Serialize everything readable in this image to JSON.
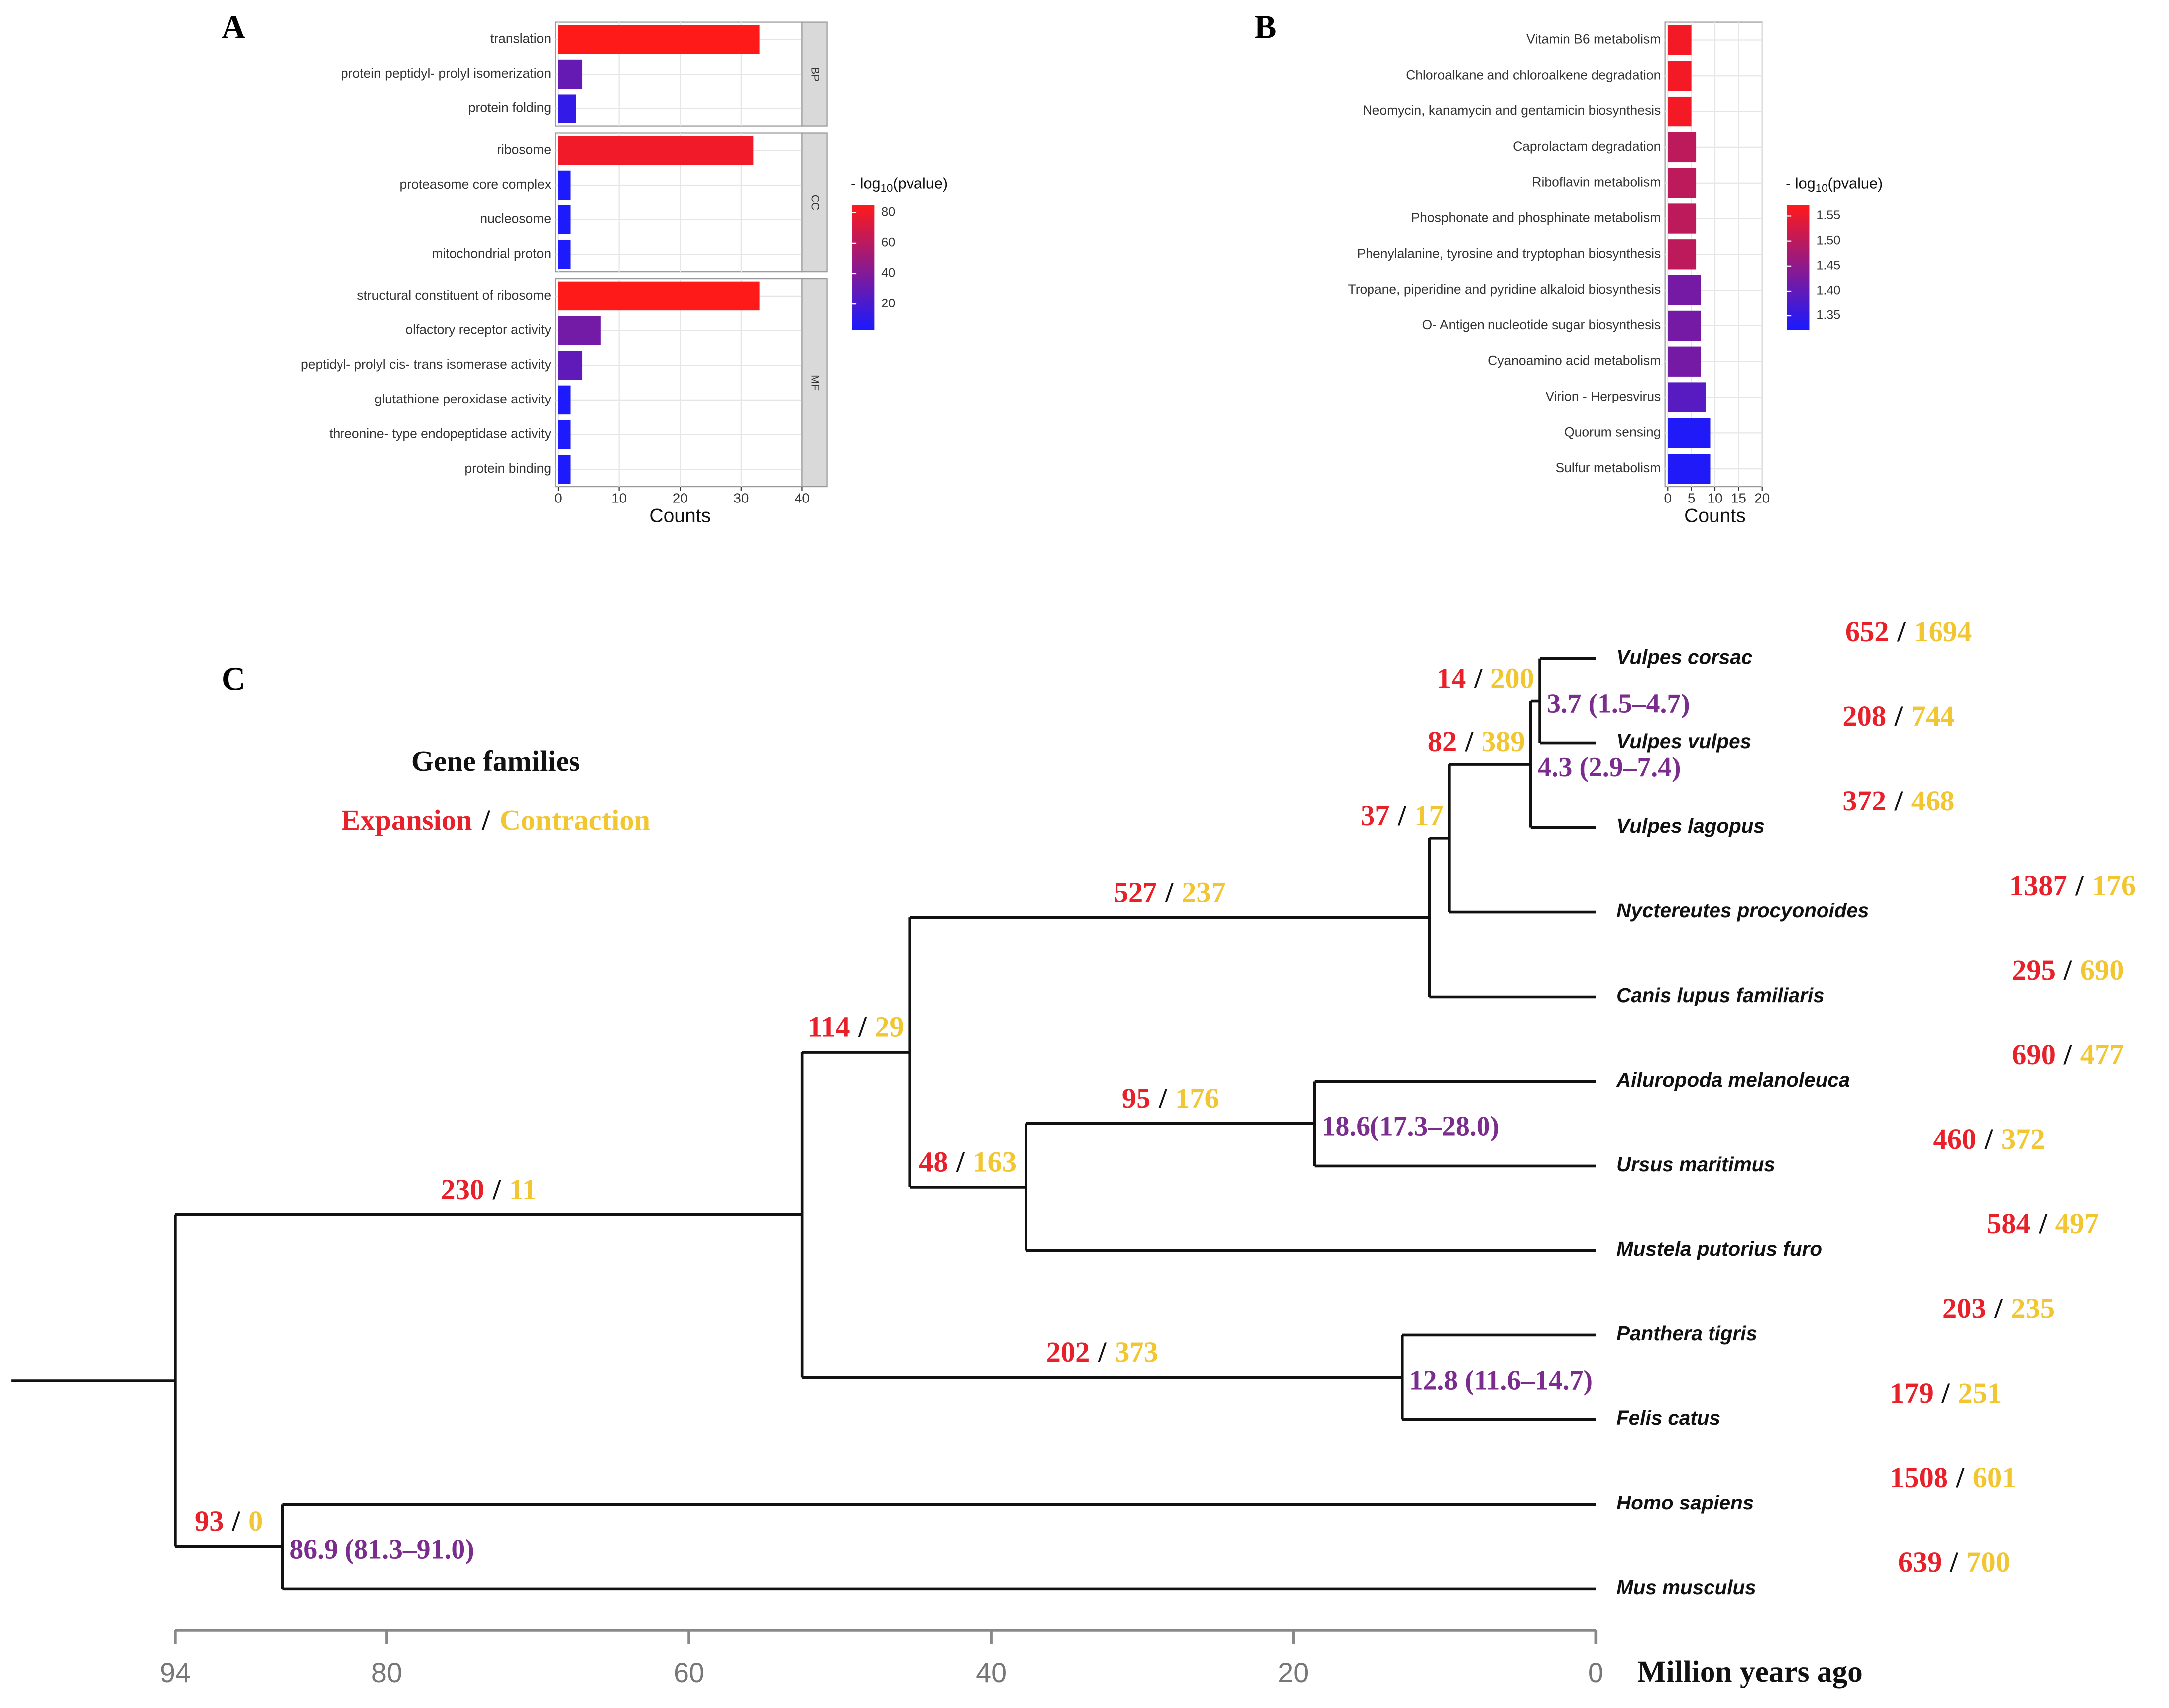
{
  "chart_data": [
    {
      "type": "bar",
      "label": "A",
      "orientation": "horizontal",
      "facets": [
        {
          "name": "BP",
          "categories": [
            "translation",
            "protein peptidyl- prolyl isomerization",
            "protein folding"
          ],
          "values": [
            33,
            4,
            3
          ],
          "color_values": [
            85,
            30,
            12
          ]
        },
        {
          "name": "CC",
          "categories": [
            "ribosome",
            "proteasome core complex",
            "nucleosome",
            "mitochondrial proton"
          ],
          "values": [
            32,
            2,
            2,
            2
          ],
          "color_values": [
            80,
            4,
            4,
            4
          ]
        },
        {
          "name": "MF",
          "categories": [
            "structural constituent of ribosome",
            "olfactory receptor activity",
            "peptidyl- prolyl cis- trans isomerase activity",
            "glutathione peroxidase activity",
            "threonine- type endopeptidase activity",
            "protein binding"
          ],
          "values": [
            33,
            7,
            4,
            2,
            2,
            2
          ],
          "color_values": [
            85,
            35,
            28,
            4,
            4,
            4
          ]
        }
      ],
      "xlabel": "Counts",
      "xlim": [
        0,
        40
      ],
      "xticks": [
        0,
        10,
        20,
        30,
        40
      ],
      "grid": true,
      "legend_title": [
        "- log",
        "10",
        "(pvalue)"
      ],
      "clim": [
        3,
        85
      ],
      "cticks": [
        20,
        40,
        60,
        80
      ],
      "colormap": [
        "#1a1aff",
        "#ff1a1a"
      ]
    },
    {
      "type": "bar",
      "label": "B",
      "orientation": "horizontal",
      "categories": [
        "Vitamin B6 metabolism",
        "Chloroalkane and chloroalkene degradation",
        "Neomycin, kanamycin and gentamicin biosynthesis",
        "Caprolactam degradation",
        "Riboflavin metabolism",
        "Phosphonate and phosphinate metabolism",
        "Phenylalanine, tyrosine and tryptophan biosynthesis",
        "Tropane, piperidine and pyridine alkaloid biosynthesis",
        "O- Antigen nucleotide sugar biosynthesis",
        "Cyanoamino acid metabolism",
        "Virion -  Herpesvirus",
        "Quorum sensing",
        "Sulfur metabolism"
      ],
      "values": [
        5,
        5,
        5,
        6,
        6,
        6,
        6,
        7,
        7,
        7,
        8,
        9,
        9
      ],
      "color_values": [
        1.56,
        1.56,
        1.56,
        1.5,
        1.5,
        1.5,
        1.5,
        1.42,
        1.42,
        1.42,
        1.39,
        1.33,
        1.33
      ],
      "xlabel": "Counts",
      "xlim": [
        0,
        20
      ],
      "xticks": [
        0,
        5,
        10,
        15,
        20
      ],
      "grid": true,
      "legend_title": [
        "- log",
        "10",
        "(pvalue)"
      ],
      "clim": [
        1.322,
        1.572
      ],
      "cticks": [
        1.35,
        {
          "value": 1.4,
          "label": "1.40"
        },
        1.45,
        {
          "value": 1.5,
          "label": "1.50"
        },
        1.55
      ],
      "colormap": [
        "#1a1aff",
        "#ff1a1a"
      ]
    },
    {
      "type": "tree",
      "label": "C",
      "legend_title": "Gene families",
      "legend_labels": [
        "Expansion",
        "Contraction"
      ],
      "separator": "/",
      "expansion_color": "#e8202a",
      "contraction_color": "#f2c631",
      "age_label_color": "#7b2d8e",
      "xlabel": "Million years ago",
      "xlim": [
        94,
        0
      ],
      "xticks": [
        94,
        80,
        60,
        40,
        20,
        0
      ],
      "tree": {
        "age": 94,
        "children": [
          {
            "age": 52.5,
            "expansion": 230,
            "contraction": 11,
            "children": [
              {
                "age": 45.4,
                "expansion": 114,
                "contraction": 29,
                "children": [
                  {
                    "age": 11,
                    "expansion": 527,
                    "contraction": 237,
                    "children": [
                      {
                        "age": 9.7,
                        "expansion": 37,
                        "contraction": 17,
                        "children": [
                          {
                            "age": 4.3,
                            "age_label": "4.3 (2.9–7.4)",
                            "expansion": 82,
                            "contraction": 389,
                            "children": [
                              {
                                "age": 3.7,
                                "age_label": "3.7 (1.5–4.7)",
                                "expansion": 14,
                                "contraction": 200,
                                "children": [
                                  {
                                    "name": "Vulpes corsac",
                                    "age": 0,
                                    "expansion": 652,
                                    "contraction": 1694
                                  },
                                  {
                                    "name": "Vulpes vulpes",
                                    "age": 0,
                                    "expansion": 208,
                                    "contraction": 744
                                  }
                                ]
                              },
                              {
                                "name": "Vulpes lagopus",
                                "age": 0,
                                "expansion": 372,
                                "contraction": 468
                              }
                            ]
                          },
                          {
                            "name": "Nyctereutes procyonoides",
                            "age": 0,
                            "expansion": 1387,
                            "contraction": 176
                          }
                        ]
                      },
                      {
                        "name": "Canis lupus familiaris",
                        "age": 0,
                        "expansion": 295,
                        "contraction": 690
                      }
                    ]
                  },
                  {
                    "age": 37.7,
                    "expansion": 48,
                    "contraction": 163,
                    "children": [
                      {
                        "age": 18.6,
                        "age_label": "18.6(17.3–28.0)",
                        "expansion": 95,
                        "contraction": 176,
                        "children": [
                          {
                            "name": "Ailuropoda melanoleuca",
                            "age": 0,
                            "expansion": 690,
                            "contraction": 477
                          },
                          {
                            "name": "Ursus maritimus",
                            "age": 0,
                            "expansion": 460,
                            "contraction": 372
                          }
                        ]
                      },
                      {
                        "name": "Mustela putorius furo",
                        "age": 0,
                        "expansion": 584,
                        "contraction": 497
                      }
                    ]
                  }
                ]
              },
              {
                "age": 12.8,
                "age_label": "12.8 (11.6–14.7)",
                "expansion": 202,
                "contraction": 373,
                "children": [
                  {
                    "name": "Panthera tigris",
                    "age": 0,
                    "expansion": 203,
                    "contraction": 235
                  },
                  {
                    "name": "Felis catus",
                    "age": 0,
                    "expansion": 179,
                    "contraction": 251
                  }
                ]
              }
            ]
          },
          {
            "age": 86.9,
            "age_label": "86.9 (81.3–91.0)",
            "expansion": 93,
            "contraction": 0,
            "children": [
              {
                "name": "Homo sapiens",
                "age": 0,
                "expansion": 1508,
                "contraction": 601
              },
              {
                "name": "Mus musculus",
                "age": 0,
                "expansion": 639,
                "contraction": 700
              }
            ]
          }
        ]
      }
    }
  ]
}
